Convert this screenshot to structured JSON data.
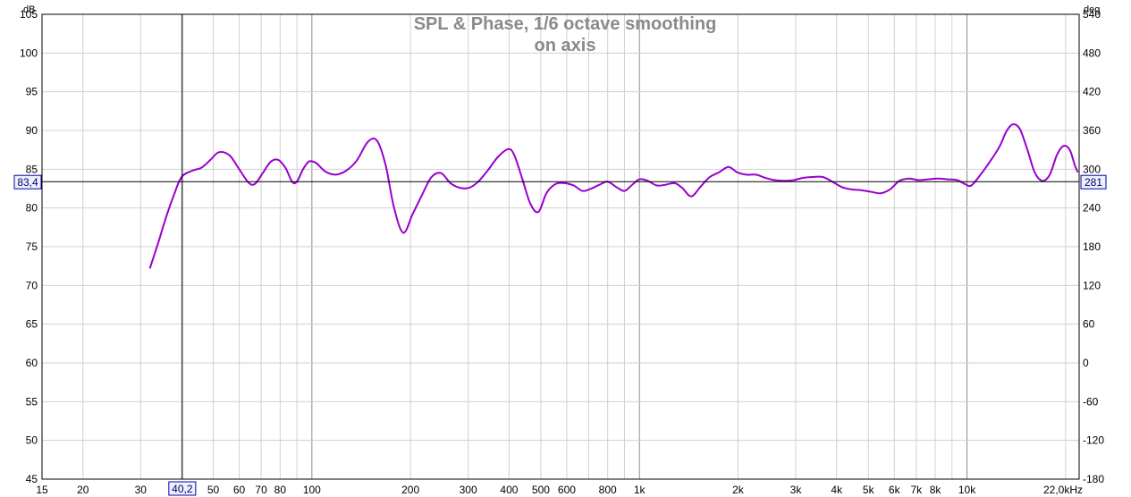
{
  "chart_data": {
    "type": "line",
    "title": "SPL & Phase, 1/6 octave smoothing",
    "subtitle": "on axis",
    "y_unit": "dB",
    "y2_unit": "deg",
    "x_scale": "log",
    "xlim": [
      15,
      22000
    ],
    "ylim": [
      45,
      105
    ],
    "y2lim": [
      -180,
      540
    ],
    "grid": true,
    "x_ticks": [
      {
        "v": 15,
        "label": "15"
      },
      {
        "v": 20,
        "label": "20"
      },
      {
        "v": 30,
        "label": "30"
      },
      {
        "v": 50,
        "label": "50"
      },
      {
        "v": 60,
        "label": "60"
      },
      {
        "v": 70,
        "label": "70"
      },
      {
        "v": 80,
        "label": "80"
      },
      {
        "v": 100,
        "label": "100"
      },
      {
        "v": 200,
        "label": "200"
      },
      {
        "v": 300,
        "label": "300"
      },
      {
        "v": 400,
        "label": "400"
      },
      {
        "v": 500,
        "label": "500"
      },
      {
        "v": 600,
        "label": "600"
      },
      {
        "v": 800,
        "label": "800"
      },
      {
        "v": 1000,
        "label": "1k"
      },
      {
        "v": 2000,
        "label": "2k"
      },
      {
        "v": 3000,
        "label": "3k"
      },
      {
        "v": 4000,
        "label": "4k"
      },
      {
        "v": 5000,
        "label": "5k"
      },
      {
        "v": 6000,
        "label": "6k"
      },
      {
        "v": 7000,
        "label": "7k"
      },
      {
        "v": 8000,
        "label": "8k"
      },
      {
        "v": 10000,
        "label": "10k"
      },
      {
        "v": 22000,
        "label": "22,0kHz"
      }
    ],
    "y_ticks": [
      105,
      100,
      95,
      90,
      85,
      80,
      75,
      70,
      65,
      60,
      55,
      50,
      45
    ],
    "y2_ticks": [
      540,
      480,
      420,
      360,
      300,
      240,
      180,
      120,
      60,
      0,
      -60,
      -120,
      -180
    ],
    "cursor": {
      "x": 40.2,
      "y": 83.4,
      "x_label": "40,2",
      "y_label": "83,4",
      "y2_label": "281"
    },
    "series": [
      {
        "color": "#9900cc",
        "x": [
          32,
          34,
          36,
          38,
          40,
          43,
          46,
          49,
          52,
          56,
          60,
          64,
          67,
          71,
          75,
          79,
          83,
          87,
          90,
          94,
          98,
          103,
          110,
          118,
          127,
          137,
          148,
          158,
          168,
          178,
          190,
          203,
          217,
          232,
          248,
          265,
          283,
          302,
          322,
          345,
          370,
          398,
          415,
          440,
          465,
          492,
          520,
          555,
          590,
          630,
          670,
          712,
          755,
          800,
          850,
          900,
          945,
          1000,
          1060,
          1130,
          1200,
          1280,
          1350,
          1440,
          1540,
          1640,
          1750,
          1870,
          1990,
          2120,
          2270,
          2420,
          2590,
          2770,
          2960,
          3170,
          3390,
          3630,
          3880,
          4150,
          4440,
          4750,
          5080,
          5440,
          5820,
          6220,
          6660,
          7120,
          7620,
          8150,
          8720,
          9330,
          9850,
          10300,
          11000,
          11800,
          12600,
          13200,
          13800,
          14500,
          15300,
          16100,
          17000,
          17900,
          18800,
          19700,
          20600,
          21300,
          21800
        ],
        "y": [
          72.2,
          75.6,
          79.0,
          81.8,
          84.0,
          84.8,
          85.2,
          86.2,
          87.2,
          86.8,
          85.0,
          83.3,
          83.1,
          84.6,
          86.0,
          86.2,
          85.2,
          83.4,
          83.4,
          85.0,
          86.0,
          85.8,
          84.7,
          84.3,
          84.8,
          86.1,
          88.5,
          88.7,
          85.5,
          80.1,
          76.8,
          79.2,
          81.7,
          84.0,
          84.5,
          83.2,
          82.6,
          82.6,
          83.4,
          84.9,
          86.6,
          87.6,
          86.8,
          83.6,
          80.5,
          79.5,
          81.9,
          83.1,
          83.2,
          82.9,
          82.2,
          82.5,
          83.0,
          83.4,
          82.7,
          82.2,
          82.9,
          83.7,
          83.5,
          82.9,
          83.0,
          83.2,
          82.6,
          81.5,
          82.8,
          84.0,
          84.6,
          85.3,
          84.6,
          84.3,
          84.3,
          83.9,
          83.6,
          83.5,
          83.6,
          83.9,
          84.0,
          84.0,
          83.4,
          82.7,
          82.4,
          82.3,
          82.1,
          81.9,
          82.4,
          83.5,
          83.8,
          83.6,
          83.7,
          83.8,
          83.7,
          83.6,
          83.1,
          82.9,
          84.3,
          86.1,
          88.0,
          89.9,
          90.8,
          90.2,
          87.5,
          84.6,
          83.5,
          84.3,
          86.8,
          88.0,
          87.5,
          85.6,
          84.6
        ]
      }
    ]
  }
}
